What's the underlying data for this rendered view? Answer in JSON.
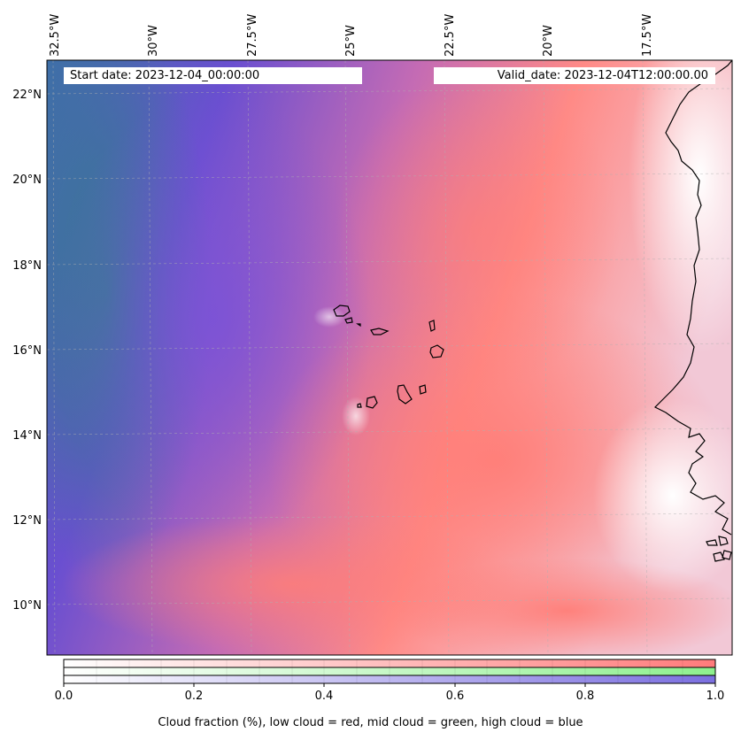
{
  "map": {
    "start_date": "Start date: 2023-12-04_00:00:00",
    "valid_date": "Valid_date: 2023-12-04T12:00:00.00",
    "lon_labels": [
      "32.5°W",
      "30°W",
      "27.5°W",
      "25°W",
      "22.5°W",
      "20°W",
      "17.5°W"
    ],
    "lat_labels": [
      "22°N",
      "20°N",
      "18°N",
      "16°N",
      "14°N",
      "12°N",
      "10°N"
    ],
    "colors": {
      "low_cloud": "#ff7b7b",
      "mid_cloud": "#90ee90",
      "high_cloud": "#7b6fe0",
      "clear": "#ffffff"
    }
  },
  "colorbar": {
    "ticks": [
      "0.0",
      "0.2",
      "0.4",
      "0.6",
      "0.8",
      "1.0"
    ],
    "caption": "Cloud fraction (%), low cloud = red, mid cloud = green, high cloud = blue"
  }
}
